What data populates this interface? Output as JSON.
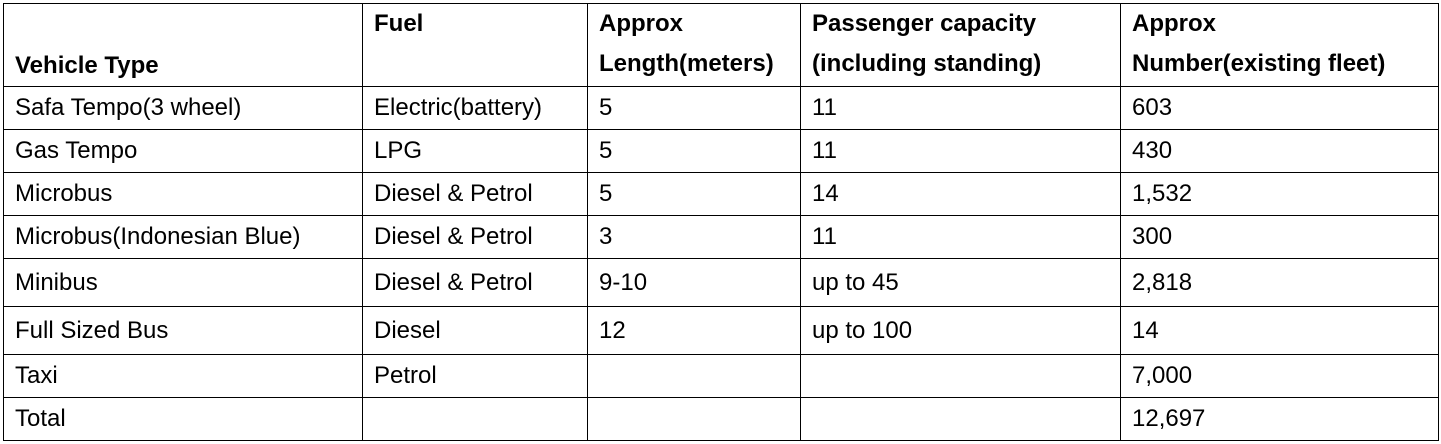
{
  "table": {
    "headers": [
      {
        "lines": [
          "Vehicle Type"
        ]
      },
      {
        "lines": [
          "Fuel"
        ]
      },
      {
        "lines": [
          "Approx",
          "Length(meters)"
        ]
      },
      {
        "lines": [
          "Passenger capacity",
          "(including standing)"
        ]
      },
      {
        "lines": [
          "Approx",
          "Number(existing fleet)"
        ]
      }
    ],
    "rows": [
      {
        "vehicle_type": "Safa Tempo(3 wheel)",
        "fuel": "Electric(battery)",
        "length": "5",
        "capacity": "11",
        "number": "603"
      },
      {
        "vehicle_type": "Gas Tempo",
        "fuel": "LPG",
        "length": "5",
        "capacity": "11",
        "number": "430"
      },
      {
        "vehicle_type": "Microbus",
        "fuel": "Diesel & Petrol",
        "length": "5",
        "capacity": "14",
        "number": "1,532"
      },
      {
        "vehicle_type": "Microbus(Indonesian Blue)",
        "fuel": "Diesel & Petrol",
        "length": "3",
        "capacity": "11",
        "number": "300"
      },
      {
        "vehicle_type": "Minibus",
        "fuel": "Diesel & Petrol",
        "length": "9-10",
        "capacity": "up to 45",
        "number": "2,818"
      },
      {
        "vehicle_type": "Full Sized Bus",
        "fuel": "Diesel",
        "length": "12",
        "capacity": "up to 100",
        "number": "14"
      },
      {
        "vehicle_type": "Taxi",
        "fuel": "Petrol",
        "length": "",
        "capacity": "",
        "number": "7,000"
      },
      {
        "vehicle_type": "Total",
        "fuel": "",
        "length": "",
        "capacity": "",
        "number": "12,697"
      }
    ]
  }
}
